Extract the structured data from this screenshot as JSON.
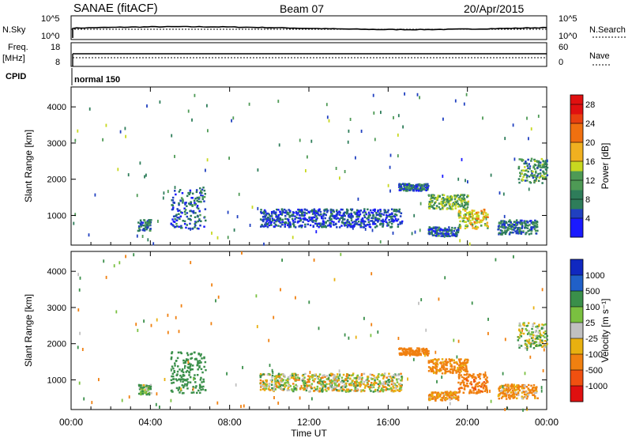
{
  "header": {
    "title": "SANAE (fitACF)",
    "beam": "Beam 07",
    "date": "20/Apr/2015"
  },
  "noise_panel": {
    "left_label": "N.Sky",
    "left_ticks": [
      "10^5",
      "10^0"
    ],
    "right_ticks": [
      "10^5",
      "10^0"
    ],
    "right_label": "N.Search"
  },
  "freq_panel": {
    "label_top": "Freq.",
    "label_unit": "[MHz]",
    "left_ticks": [
      "18",
      "8"
    ],
    "right_ticks": [
      "60",
      "0"
    ],
    "right_label": "Nave"
  },
  "cpid": {
    "label": "CPID",
    "value": "normal 150"
  },
  "colors": {
    "power_scale": [
      "#1a1aff",
      "#2040c0",
      "#2e7d5a",
      "#4e9a55",
      "#c8d820",
      "#f0b020",
      "#f07010",
      "#e84010",
      "#e01010"
    ],
    "velocity_scale": [
      "#1028c0",
      "#2060c8",
      "#3a8f4a",
      "#7ac040",
      "#c0c0c0",
      "#e8b010",
      "#f08010",
      "#f05010",
      "#e01010"
    ]
  },
  "chart_data": [
    {
      "type": "heatmap",
      "name": "power",
      "ylabel": "Slant Range [km]",
      "y_ticks": [
        "1000",
        "2000",
        "3000",
        "4000"
      ],
      "ylim": [
        180,
        4550
      ],
      "colorbar_label": "Power [dB]",
      "colorbar_ticks": [
        "4",
        "8",
        "12",
        "16",
        "20",
        "24",
        "28"
      ],
      "colorbar_range": [
        0,
        30
      ],
      "regions": [
        {
          "t_start": "03:20",
          "t_end": "04:00",
          "range_lo": 600,
          "range_hi": 900,
          "value": 8
        },
        {
          "t_start": "05:00",
          "t_end": "06:45",
          "range_lo": 650,
          "range_hi": 1800,
          "value": 6
        },
        {
          "t_start": "09:30",
          "t_end": "16:40",
          "range_lo": 700,
          "range_hi": 1200,
          "value": 5
        },
        {
          "t_start": "16:30",
          "t_end": "18:00",
          "range_lo": 1700,
          "range_hi": 1900,
          "value": 7
        },
        {
          "t_start": "18:00",
          "t_end": "20:00",
          "range_lo": 1200,
          "range_hi": 1600,
          "value": 12
        },
        {
          "t_start": "18:00",
          "t_end": "19:30",
          "range_lo": 450,
          "range_hi": 700,
          "value": 6
        },
        {
          "t_start": "19:30",
          "t_end": "21:00",
          "range_lo": 650,
          "range_hi": 1200,
          "value": 16
        },
        {
          "t_start": "21:30",
          "t_end": "23:30",
          "range_lo": 500,
          "range_hi": 900,
          "value": 8
        },
        {
          "t_start": "22:30",
          "t_end": "24:00",
          "range_lo": 1900,
          "range_hi": 2600,
          "value": 10
        }
      ]
    },
    {
      "type": "heatmap",
      "name": "velocity",
      "ylabel": "Slant Range [km]",
      "y_ticks": [
        "1000",
        "2000",
        "3000",
        "4000"
      ],
      "ylim": [
        180,
        4550
      ],
      "colorbar_label": "Velocity [m s⁻¹]",
      "colorbar_ticks": [
        "1000",
        "500",
        "100",
        "25",
        "-25",
        "-100",
        "-500",
        "-1000"
      ],
      "regions": [
        {
          "t_start": "03:20",
          "t_end": "04:00",
          "range_lo": 600,
          "range_hi": 900,
          "value": 100
        },
        {
          "t_start": "05:00",
          "t_end": "06:45",
          "range_lo": 650,
          "range_hi": 1800,
          "value": 300
        },
        {
          "t_start": "09:30",
          "t_end": "16:40",
          "range_lo": 700,
          "range_hi": 1200,
          "value": 0
        },
        {
          "t_start": "16:30",
          "t_end": "18:00",
          "range_lo": 1700,
          "range_hi": 1900,
          "value": -300
        },
        {
          "t_start": "18:00",
          "t_end": "20:00",
          "range_lo": 1200,
          "range_hi": 1600,
          "value": -200
        },
        {
          "t_start": "18:00",
          "t_end": "19:30",
          "range_lo": 450,
          "range_hi": 700,
          "value": -150
        },
        {
          "t_start": "19:30",
          "t_end": "21:00",
          "range_lo": 650,
          "range_hi": 1200,
          "value": -400
        },
        {
          "t_start": "21:30",
          "t_end": "23:30",
          "range_lo": 500,
          "range_hi": 900,
          "value": -150
        },
        {
          "t_start": "22:30",
          "t_end": "24:00",
          "range_lo": 1900,
          "range_hi": 2600,
          "value": 50
        }
      ]
    }
  ],
  "x_axis": {
    "label": "Time UT",
    "ticks": [
      "00:00",
      "04:00",
      "08:00",
      "12:00",
      "16:00",
      "20:00",
      "00:00"
    ]
  }
}
